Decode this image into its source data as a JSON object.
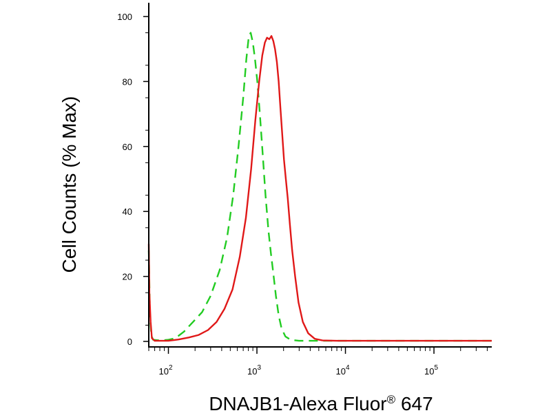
{
  "colors": {
    "control": "#22cc22",
    "sample": "#e01818",
    "axis": "#000000"
  },
  "chart_data": {
    "type": "line",
    "title": "",
    "xlabel": "DNAJB1-Alexa Fluor® 647",
    "ylabel": "Cell Counts (% Max)",
    "xscale": "log",
    "xlim": [
      60,
      450000
    ],
    "ylim": [
      0,
      100
    ],
    "grid": false,
    "legend": "none",
    "x_ticks": [
      {
        "value": 100,
        "base": "10",
        "exp": "2"
      },
      {
        "value": 1000,
        "base": "10",
        "exp": "3"
      },
      {
        "value": 10000,
        "base": "10",
        "exp": "4"
      },
      {
        "value": 100000,
        "base": "10",
        "exp": "5"
      }
    ],
    "y_ticks": [
      {
        "value": 0,
        "label": "0"
      },
      {
        "value": 20,
        "label": "20"
      },
      {
        "value": 40,
        "label": "40"
      },
      {
        "value": 60,
        "label": "60"
      },
      {
        "value": 80,
        "label": "80"
      },
      {
        "value": 100,
        "label": "100"
      }
    ],
    "series": [
      {
        "color": "#22cc22",
        "style": "dashed",
        "points": [
          [
            60,
            28
          ],
          [
            62,
            8
          ],
          [
            64,
            2
          ],
          [
            67,
            0.5
          ],
          [
            80,
            0.3
          ],
          [
            100,
            0.5
          ],
          [
            120,
            1
          ],
          [
            150,
            3
          ],
          [
            190,
            6
          ],
          [
            240,
            9
          ],
          [
            300,
            14
          ],
          [
            380,
            22
          ],
          [
            460,
            32
          ],
          [
            540,
            45
          ],
          [
            620,
            60
          ],
          [
            700,
            75
          ],
          [
            760,
            87
          ],
          [
            810,
            94
          ],
          [
            850,
            95
          ],
          [
            900,
            92
          ],
          [
            950,
            87
          ],
          [
            1010,
            80
          ],
          [
            1080,
            70
          ],
          [
            1160,
            58
          ],
          [
            1250,
            45
          ],
          [
            1350,
            34
          ],
          [
            1440,
            27
          ],
          [
            1530,
            21
          ],
          [
            1640,
            14
          ],
          [
            1760,
            8
          ],
          [
            1900,
            4
          ],
          [
            2100,
            1.5
          ],
          [
            2400,
            0.5
          ],
          [
            3000,
            0.2
          ],
          [
            5000,
            0.2
          ],
          [
            20000,
            0.2
          ],
          [
            100000,
            0.2
          ],
          [
            450000,
            0.2
          ]
        ]
      },
      {
        "color": "#e01818",
        "style": "solid",
        "points": [
          [
            60,
            30
          ],
          [
            61,
            15
          ],
          [
            63,
            6
          ],
          [
            65,
            1
          ],
          [
            70,
            0.2
          ],
          [
            100,
            0.2
          ],
          [
            130,
            0.6
          ],
          [
            170,
            1.2
          ],
          [
            220,
            2
          ],
          [
            280,
            3.5
          ],
          [
            350,
            6
          ],
          [
            430,
            10
          ],
          [
            530,
            16
          ],
          [
            640,
            26
          ],
          [
            750,
            38
          ],
          [
            860,
            53
          ],
          [
            960,
            68
          ],
          [
            1060,
            80
          ],
          [
            1150,
            88
          ],
          [
            1230,
            92
          ],
          [
            1300,
            93.5
          ],
          [
            1380,
            93
          ],
          [
            1460,
            94
          ],
          [
            1530,
            92.5
          ],
          [
            1600,
            90
          ],
          [
            1680,
            86
          ],
          [
            1760,
            80
          ],
          [
            1840,
            72
          ],
          [
            1930,
            64
          ],
          [
            2020,
            56
          ],
          [
            2120,
            50
          ],
          [
            2230,
            44
          ],
          [
            2360,
            36
          ],
          [
            2500,
            28
          ],
          [
            2700,
            20
          ],
          [
            2950,
            12
          ],
          [
            3300,
            6
          ],
          [
            3800,
            2.5
          ],
          [
            4500,
            0.8
          ],
          [
            5500,
            0.3
          ],
          [
            8000,
            0.2
          ],
          [
            30000,
            0.2
          ],
          [
            150000,
            0.2
          ],
          [
            450000,
            0.2
          ]
        ]
      }
    ]
  }
}
